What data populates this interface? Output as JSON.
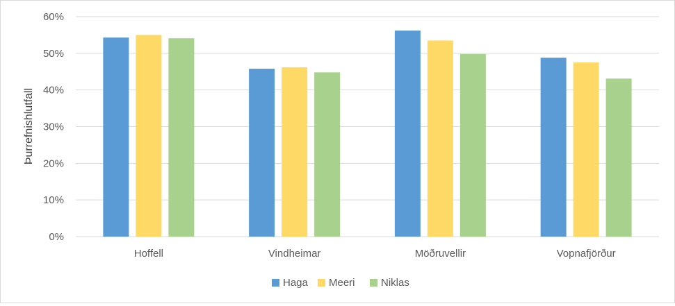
{
  "chart_data": {
    "type": "bar",
    "title": "",
    "xlabel": "",
    "ylabel": "Þurrefnishlutfall",
    "categories": [
      "Hoffell",
      "Vindheimar",
      "Möðruvellir",
      "Vopnafjörður"
    ],
    "series": [
      {
        "name": "Haga",
        "color": "#5b9bd5",
        "values": [
          54.3,
          45.8,
          56.2,
          48.8
        ]
      },
      {
        "name": "Meeri",
        "color": "#ffd966",
        "values": [
          55.0,
          46.2,
          53.5,
          47.5
        ]
      },
      {
        "name": "Niklas",
        "color": "#a9d18e",
        "values": [
          54.1,
          44.8,
          49.8,
          43.1
        ]
      }
    ],
    "ylim": [
      0,
      60
    ],
    "yticks": [
      "0%",
      "10%",
      "20%",
      "30%",
      "40%",
      "50%",
      "60%"
    ],
    "grid": true,
    "legend_position": "bottom"
  }
}
